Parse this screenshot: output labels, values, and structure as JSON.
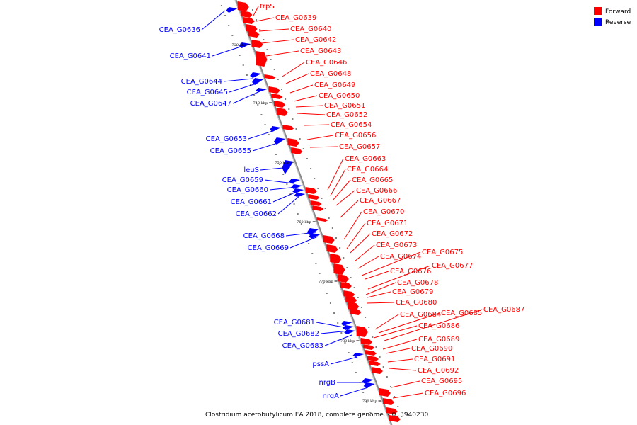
{
  "legend": {
    "forward_label": "Forward",
    "reverse_label": "Reverse",
    "forward_color": "#ff0000",
    "reverse_color": "#0000ff"
  },
  "caption": "Clostridium acetobutylicum EA 2018, complete genome. - 0..3940230",
  "ticks": [
    "730 kbp",
    "740 kbp",
    "750 kbp",
    "760 kbp",
    "770 kbp",
    "780 kbp",
    "790 kbp"
  ],
  "forward_genes": [
    "trpS",
    "CEA_G0639",
    "CEA_G0640",
    "CEA_G0642",
    "CEA_G0643",
    "CEA_G0646",
    "CEA_G0648",
    "CEA_G0649",
    "CEA_G0650",
    "CEA_G0651",
    "CEA_G0652",
    "CEA_G0654",
    "CEA_G0656",
    "CEA_G0657",
    "CEA_G0663",
    "CEA_G0664",
    "CEA_G0665",
    "CEA_G0666",
    "CEA_G0667",
    "CEA_G0670",
    "CEA_G0671",
    "CEA_G0672",
    "CEA_G0673",
    "CEA_G0674",
    "CEA_G0675",
    "CEA_G0676",
    "CEA_G0677",
    "CEA_G0678",
    "CEA_G0679",
    "CEA_G0680",
    "CEA_G0684",
    "CEA_G0685",
    "CEA_G0687",
    "CEA_G0686",
    "CEA_G0689",
    "CEA_G0690",
    "CEA_G0691",
    "CEA_G0692",
    "CEA_G0695",
    "CEA_G0696"
  ],
  "reverse_genes": [
    "CEA_G0636",
    "CEA_G0641",
    "CEA_G0644",
    "CEA_G0645",
    "CEA_G0647",
    "CEA_G0653",
    "CEA_G0655",
    "leuS",
    "CEA_G0659",
    "CEA_G0660",
    "CEA_G0661",
    "CEA_G0662",
    "CEA_G0668",
    "CEA_G0669",
    "CEA_G0681",
    "CEA_G0682",
    "CEA_G0683",
    "pssA",
    "nrgB",
    "nrgA"
  ]
}
